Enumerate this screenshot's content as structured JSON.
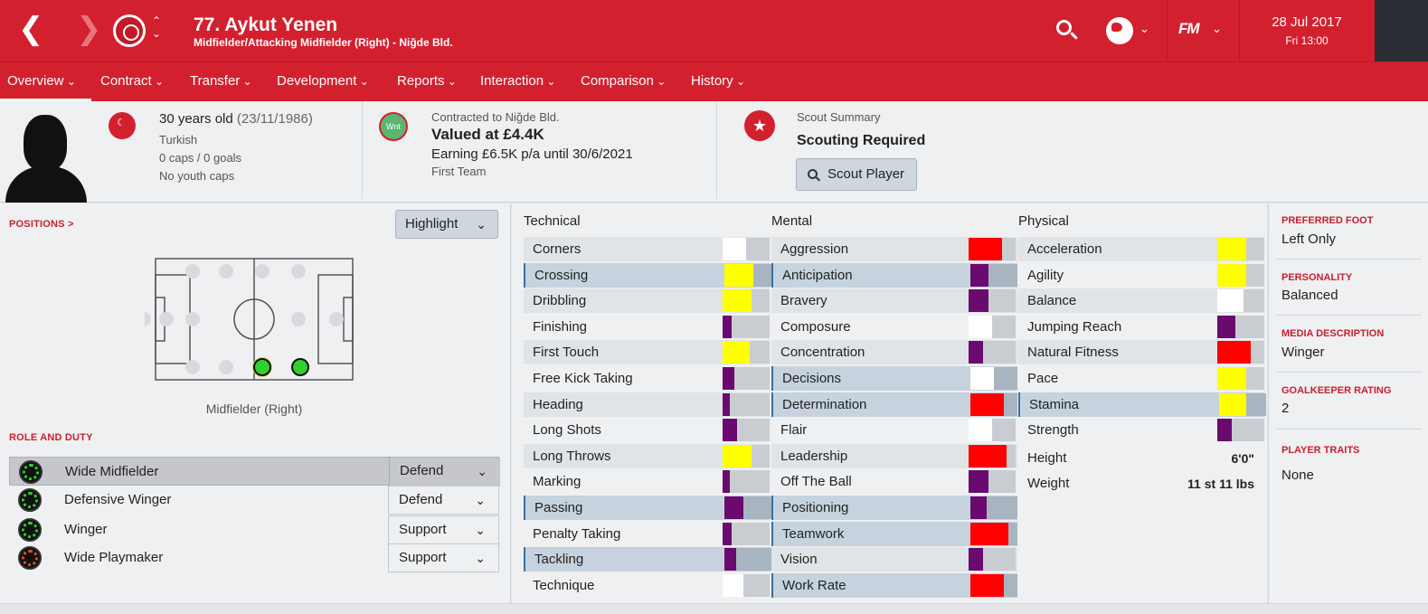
{
  "header": {
    "player_name": "77. Aykut Yenen",
    "player_subtitle": "Midfielder/Attacking Midfielder (Right) - Niğde Bld.",
    "logo": "FM",
    "date": "28 Jul 2017",
    "time": "Fri 13:00",
    "colors": {
      "brand": "#d3202f"
    }
  },
  "tabs": [
    "Overview",
    "Contract",
    "Transfer",
    "Development",
    "Reports",
    "Interaction",
    "Comparison",
    "History"
  ],
  "info": {
    "age_line": "30 years old",
    "dob": "(23/11/1986)",
    "nationality": "Turkish",
    "caps": "0 caps / 0 goals",
    "youth_caps": "No youth caps",
    "contract_badge": "Wnt",
    "contracted_to": "Contracted to Niğde Bld.",
    "value": "Valued at £4.4K",
    "earning": "Earning £6.5K p/a until 30/6/2021",
    "squad_status": "First Team",
    "scout_summary_label": "Scout Summary",
    "scout_status": "Scouting Required",
    "scout_button": "Scout Player"
  },
  "positions": {
    "heading": "POSITIONS >",
    "highlight_button": "Highlight",
    "current_position": "Midfielder (Right)"
  },
  "roles": {
    "heading": "ROLE AND DUTY",
    "items": [
      {
        "name": "Wide Midfielder",
        "duty": "Defend",
        "rating_color": "#2ed12e"
      },
      {
        "name": "Defensive Winger",
        "duty": "Defend",
        "rating_color": "#2ed12e"
      },
      {
        "name": "Winger",
        "duty": "Support",
        "rating_color": "#2ed12e"
      },
      {
        "name": "Wide Playmaker",
        "duty": "Support",
        "rating_color": "#e0502a"
      }
    ]
  },
  "attributes": {
    "technical_label": "Technical",
    "mental_label": "Mental",
    "physical_label": "Physical",
    "technical": [
      "Corners",
      "Crossing",
      "Dribbling",
      "Finishing",
      "First Touch",
      "Free Kick Taking",
      "Heading",
      "Long Shots",
      "Long Throws",
      "Marking",
      "Passing",
      "Penalty Taking",
      "Tackling",
      "Technique"
    ],
    "mental": [
      "Aggression",
      "Anticipation",
      "Bravery",
      "Composure",
      "Concentration",
      "Decisions",
      "Determination",
      "Flair",
      "Leadership",
      "Off The Ball",
      "Positioning",
      "Teamwork",
      "Vision",
      "Work Rate"
    ],
    "physical": [
      "Acceleration",
      "Agility",
      "Balance",
      "Jumping Reach",
      "Natural Fitness",
      "Pace",
      "Stamina",
      "Strength"
    ],
    "height_label": "Height",
    "height": "6'0\"",
    "weight_label": "Weight",
    "weight": "11 st 11 lbs"
  },
  "profile": {
    "preferred_foot_label": "PREFERRED FOOT",
    "preferred_foot": "Left Only",
    "personality_label": "PERSONALITY",
    "personality": "Balanced",
    "media_label": "MEDIA DESCRIPTION",
    "media": "Winger",
    "gk_rating_label": "GOALKEEPER RATING",
    "gk_rating": "2",
    "traits_label": "PLAYER TRAITS",
    "traits": "None"
  }
}
